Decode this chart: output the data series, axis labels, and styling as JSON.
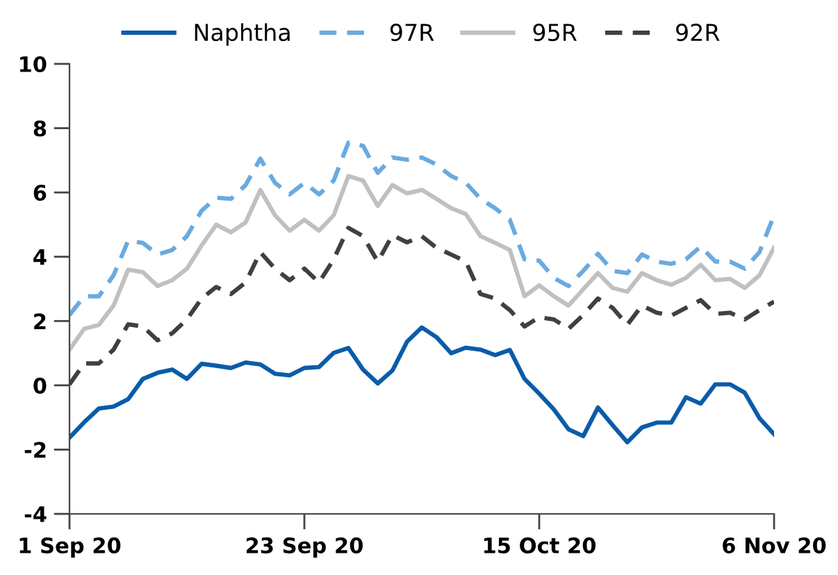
{
  "chart_data": {
    "type": "line",
    "categories": [
      "1 Sep 20",
      null,
      null,
      null,
      null,
      null,
      null,
      null,
      null,
      null,
      null,
      null,
      null,
      null,
      null,
      null,
      "23 Sep 20",
      null,
      null,
      null,
      null,
      null,
      null,
      null,
      null,
      null,
      null,
      null,
      null,
      null,
      null,
      null,
      "15 Oct 20",
      null,
      null,
      null,
      null,
      null,
      null,
      null,
      null,
      null,
      null,
      null,
      null,
      null,
      null,
      null,
      "6 Nov 20"
    ],
    "series": [
      {
        "name": "Naphtha",
        "color": "#0a5ca8",
        "line_style": "solid",
        "values": [
          -1.63,
          -1.15,
          -0.72,
          -0.66,
          -0.43,
          0.2,
          0.39,
          0.49,
          0.2,
          0.67,
          0.61,
          0.54,
          0.71,
          0.65,
          0.36,
          0.31,
          0.54,
          0.57,
          1.01,
          1.16,
          0.49,
          0.06,
          0.46,
          1.36,
          1.8,
          1.5,
          1.0,
          1.17,
          1.11,
          0.94,
          1.1,
          0.2,
          -0.26,
          -0.75,
          -1.37,
          -1.58,
          -0.69,
          -1.24,
          -1.77,
          -1.31,
          -1.16,
          -1.16,
          -0.37,
          -0.57,
          0.03,
          0.03,
          -0.23,
          -1.02,
          -1.52
        ]
      },
      {
        "name": "97R",
        "color": "#6aaae0",
        "line_style": "dashed",
        "values": [
          2.19,
          2.77,
          2.77,
          3.42,
          4.5,
          4.43,
          4.07,
          4.21,
          4.64,
          5.43,
          5.84,
          5.8,
          6.23,
          7.05,
          6.3,
          5.94,
          6.3,
          5.94,
          6.37,
          7.55,
          7.45,
          6.61,
          7.09,
          7.02,
          7.09,
          6.87,
          6.51,
          6.3,
          5.8,
          5.51,
          5.15,
          3.92,
          3.88,
          3.34,
          3.09,
          3.56,
          4.09,
          3.56,
          3.49,
          4.07,
          3.85,
          3.78,
          3.92,
          4.32,
          3.85,
          3.85,
          3.63,
          4.14,
          5.29
        ]
      },
      {
        "name": "95R",
        "color": "#c0c0c0",
        "line_style": "solid",
        "values": [
          1.11,
          1.76,
          1.88,
          2.48,
          3.6,
          3.52,
          3.09,
          3.27,
          3.63,
          4.35,
          5.0,
          4.76,
          5.07,
          6.08,
          5.29,
          4.81,
          5.15,
          4.81,
          5.29,
          6.51,
          6.37,
          5.58,
          6.23,
          5.97,
          6.08,
          5.8,
          5.51,
          5.33,
          4.64,
          4.43,
          4.21,
          2.77,
          3.11,
          2.77,
          2.48,
          2.99,
          3.49,
          3.03,
          2.91,
          3.49,
          3.27,
          3.13,
          3.34,
          3.75,
          3.27,
          3.31,
          3.03,
          3.42,
          4.28
        ]
      },
      {
        "name": "92R",
        "color": "#404040",
        "line_style": "dashed",
        "values": [
          0.03,
          0.68,
          0.68,
          1.11,
          1.9,
          1.83,
          1.4,
          1.62,
          2.05,
          2.7,
          3.06,
          2.84,
          3.2,
          4.14,
          3.63,
          3.27,
          3.63,
          3.2,
          3.92,
          4.9,
          4.64,
          3.85,
          4.67,
          4.45,
          4.64,
          4.28,
          4.07,
          3.85,
          2.84,
          2.7,
          2.34,
          1.83,
          2.12,
          2.05,
          1.76,
          2.19,
          2.7,
          2.41,
          1.88,
          2.48,
          2.26,
          2.17,
          2.41,
          2.65,
          2.22,
          2.26,
          2.05,
          2.34,
          2.6
        ]
      }
    ],
    "ylim": [
      -4,
      10
    ],
    "yticks": [
      -4,
      -2,
      0,
      2,
      4,
      6,
      8,
      10
    ],
    "grid": false,
    "legend": "top",
    "marker": "none"
  }
}
